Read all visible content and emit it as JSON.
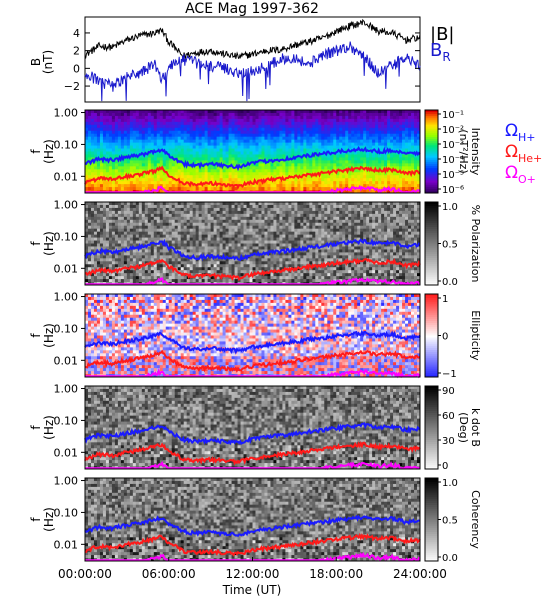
{
  "chart_data": [
    {
      "type": "line",
      "title": "ACE Mag 1997-362",
      "ylabel": "B",
      "yunit": "(nT)",
      "ylim": [
        -3.8,
        5.8
      ],
      "yticks": [
        "4",
        "2",
        "0",
        "−2"
      ],
      "xlim_hours": [
        0,
        24
      ],
      "series": [
        {
          "name": "|B|",
          "color": "#000000",
          "x_hours": [
            0,
            1,
            2,
            3,
            4,
            5,
            5.5,
            6,
            7,
            8,
            9,
            10,
            11,
            12,
            13,
            14,
            15,
            16,
            17,
            18,
            19,
            20,
            21,
            22,
            23,
            24
          ],
          "values": [
            1.5,
            2.5,
            2.4,
            3.2,
            3.7,
            4.0,
            4.3,
            3.0,
            1.4,
            1.8,
            2.0,
            1.6,
            1.3,
            1.6,
            2.0,
            2.1,
            2.6,
            3.0,
            3.4,
            4.2,
            4.8,
            5.2,
            4.2,
            4.0,
            3.2,
            3.5
          ]
        },
        {
          "name": "B",
          "subscript": "R",
          "color": "#1a1acc",
          "x_hours": [
            0,
            1,
            2,
            3,
            4,
            5,
            5.5,
            6,
            7,
            8,
            9,
            10,
            11,
            12,
            13,
            14,
            15,
            16,
            17,
            18,
            19,
            20,
            21,
            22,
            23,
            24
          ],
          "values": [
            -0.5,
            -1.5,
            -2.0,
            -1.0,
            -0.5,
            0.5,
            -1.5,
            0.2,
            1.0,
            0.6,
            0.3,
            0.0,
            -0.5,
            -0.3,
            0.2,
            1.0,
            1.3,
            0.4,
            1.5,
            2.0,
            2.5,
            1.3,
            -0.5,
            0.3,
            1.2,
            0.2
          ]
        }
      ],
      "legend_position": "right"
    },
    {
      "type": "heatmap",
      "quantity": "Intensity",
      "ylabel": "f",
      "yunit": "(Hz)",
      "log_y": true,
      "ylim": [
        0.003,
        1.2
      ],
      "yticks": [
        "1.00",
        "0.10",
        "0.01"
      ],
      "colorbar_label": "Intensity",
      "colorbar_unit": "(nT²/Hz)",
      "colorbar_ticks": [
        "10⁻¹",
        "10⁻²",
        "10⁻³",
        "10⁻⁴",
        "10⁻⁵",
        "10⁻⁶"
      ],
      "colormap": "rainbow",
      "gyro_legend": [
        {
          "label": "Ω",
          "subscript": "H+",
          "color": "#1a1aff"
        },
        {
          "label": "Ω",
          "subscript": "He+",
          "color": "#ff1a1a"
        },
        {
          "label": "Ω",
          "subscript": "O+",
          "color": "#ff00ff"
        }
      ]
    },
    {
      "type": "heatmap",
      "quantity": "% Polarization",
      "ylabel": "f",
      "yunit": "(Hz)",
      "log_y": true,
      "ylim": [
        0.003,
        1.2
      ],
      "yticks": [
        "1.00",
        "0.10",
        "0.01"
      ],
      "colorbar_label": "% Polarization",
      "colorbar_ticks": [
        "1.0",
        "0.5",
        "0.0"
      ],
      "colormap": "gray"
    },
    {
      "type": "heatmap",
      "quantity": "Ellipticity",
      "ylabel": "f",
      "yunit": "(Hz)",
      "log_y": true,
      "ylim": [
        0.003,
        1.2
      ],
      "yticks": [
        "1.00",
        "0.10",
        "0.01"
      ],
      "colorbar_label": "Ellipticity",
      "colorbar_ticks": [
        "1",
        "0",
        "−1"
      ],
      "colormap": "blue-white-red"
    },
    {
      "type": "heatmap",
      "quantity": "k dot B",
      "ylabel": "f",
      "yunit": "(Hz)",
      "log_y": true,
      "ylim": [
        0.003,
        1.2
      ],
      "yticks": [
        "1.00",
        "0.10",
        "0.01"
      ],
      "colorbar_label": "k dot B",
      "colorbar_unit": "(Deg)",
      "colorbar_ticks": [
        "90",
        "60",
        "30",
        "0"
      ],
      "colormap": "gray"
    },
    {
      "type": "heatmap",
      "quantity": "Coherency",
      "ylabel": "f",
      "yunit": "(Hz)",
      "log_y": true,
      "ylim": [
        0.003,
        1.2
      ],
      "yticks": [
        "1.00",
        "0.10",
        "0.01"
      ],
      "colorbar_label": "Coherency",
      "colorbar_ticks": [
        "1.0",
        "0.5",
        "0.0"
      ],
      "colormap": "gray",
      "xlabel": "Time (UT)",
      "xticks": [
        "00:00:00",
        "06:00:00",
        "12:00:00",
        "18:00:00",
        "24:00:00"
      ]
    }
  ],
  "gyro_curves": {
    "x_hours": [
      0,
      1,
      2,
      3,
      4,
      5,
      5.5,
      6,
      7,
      8,
      9,
      10,
      11,
      12,
      13,
      14,
      15,
      16,
      17,
      18,
      19,
      20,
      21,
      22,
      23,
      24
    ],
    "H_plus_hz": [
      0.025,
      0.035,
      0.032,
      0.04,
      0.047,
      0.06,
      0.07,
      0.045,
      0.025,
      0.022,
      0.024,
      0.022,
      0.02,
      0.026,
      0.03,
      0.034,
      0.038,
      0.045,
      0.05,
      0.058,
      0.065,
      0.072,
      0.06,
      0.065,
      0.05,
      0.055
    ],
    "He_plus_hz": [
      0.0062,
      0.0087,
      0.008,
      0.01,
      0.0118,
      0.015,
      0.0175,
      0.0112,
      0.0062,
      0.0055,
      0.006,
      0.0055,
      0.005,
      0.0065,
      0.0075,
      0.0085,
      0.0095,
      0.0112,
      0.0125,
      0.0145,
      0.0162,
      0.018,
      0.015,
      0.0162,
      0.0125,
      0.0137
    ],
    "O_plus_hz": [
      0.0016,
      0.0022,
      0.002,
      0.0025,
      0.0029,
      0.0037,
      0.0044,
      0.0028,
      0.0016,
      0.0014,
      0.0015,
      0.0014,
      0.0012,
      0.0016,
      0.0019,
      0.0021,
      0.0024,
      0.0028,
      0.0031,
      0.0036,
      0.004,
      0.0045,
      0.0037,
      0.004,
      0.0031,
      0.0034
    ]
  }
}
